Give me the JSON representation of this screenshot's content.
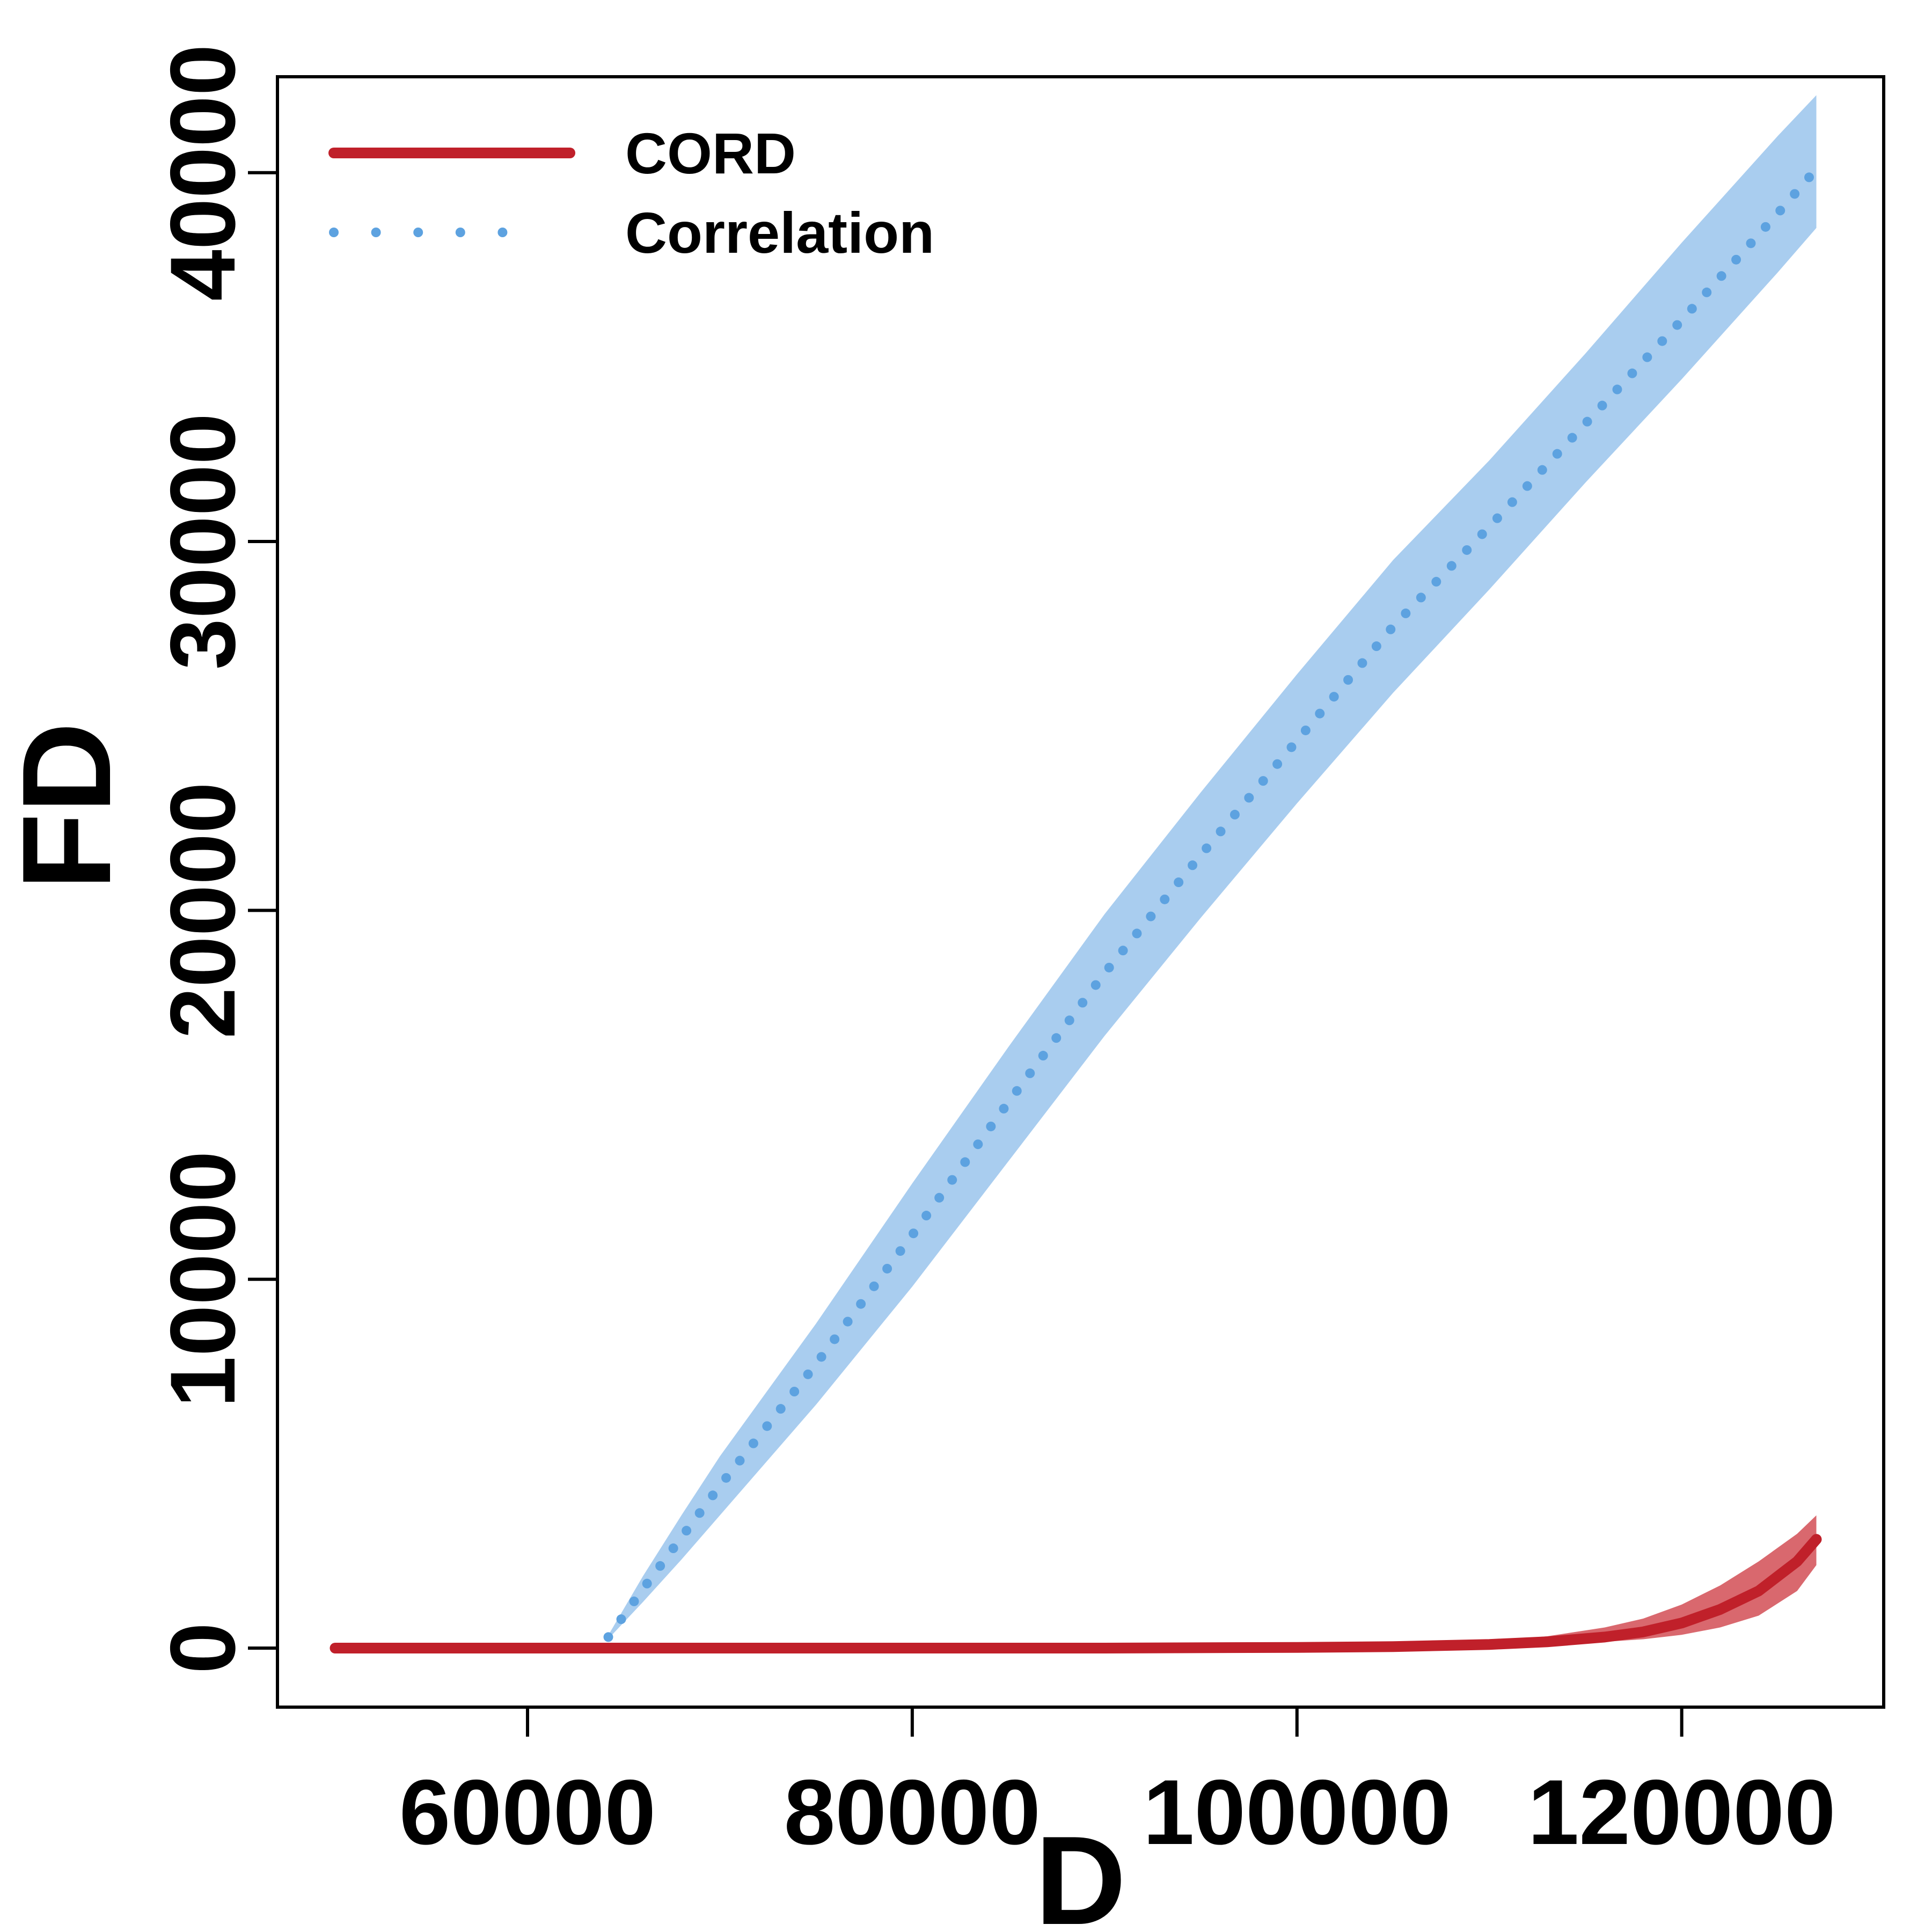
{
  "chart_data": {
    "type": "line",
    "xlabel": "D",
    "ylabel": "FD",
    "xlim": [
      47000,
      130500
    ],
    "ylim": [
      -1600,
      42600
    ],
    "xticks": [
      60000,
      80000,
      100000,
      120000
    ],
    "xtick_labels": [
      "60000",
      "80000",
      "100000",
      "120000"
    ],
    "yticks": [
      0,
      10000,
      20000,
      30000,
      40000
    ],
    "ytick_labels": [
      "0",
      "10000",
      "20000",
      "30000",
      "40000"
    ],
    "grid": false,
    "legend_position": "top-left",
    "series": [
      {
        "name": "CORD",
        "line_style": "solid",
        "color": "#c0202a",
        "band_color": "#d9686e",
        "x": [
          50000,
          60000,
          70000,
          80000,
          90000,
          100000,
          105000,
          110000,
          113000,
          116000,
          118000,
          120000,
          122000,
          124000,
          126000,
          127000
        ],
        "y": [
          0,
          0,
          0,
          0,
          0,
          20,
          40,
          100,
          170,
          300,
          440,
          680,
          1050,
          1550,
          2350,
          2950
        ],
        "lower": [
          0,
          0,
          0,
          0,
          0,
          10,
          20,
          60,
          100,
          170,
          240,
          360,
          560,
          880,
          1550,
          2250
        ],
        "upper": [
          0,
          0,
          0,
          0,
          0,
          40,
          80,
          190,
          320,
          560,
          800,
          1180,
          1700,
          2350,
          3100,
          3600
        ]
      },
      {
        "name": "Correlation",
        "line_style": "dotted",
        "color": "#5da2e0",
        "band_color": "#a9cdef",
        "x": [
          64200,
          66000,
          68000,
          70000,
          75000,
          80000,
          85000,
          90000,
          95000,
          100000,
          105000,
          110000,
          115000,
          120000,
          125000,
          127000
        ],
        "y": [
          300,
          1600,
          3000,
          4400,
          7700,
          11200,
          14800,
          18300,
          21500,
          24600,
          27700,
          30400,
          33200,
          36000,
          38900,
          40100
        ],
        "lower": [
          250,
          1250,
          2400,
          3600,
          6600,
          9800,
          13200,
          16600,
          19800,
          22900,
          25900,
          28700,
          31600,
          34400,
          37300,
          38500
        ],
        "upper": [
          350,
          1950,
          3600,
          5200,
          8800,
          12600,
          16300,
          19900,
          23200,
          26400,
          29500,
          32200,
          35100,
          38100,
          41000,
          42100
        ]
      }
    ]
  }
}
